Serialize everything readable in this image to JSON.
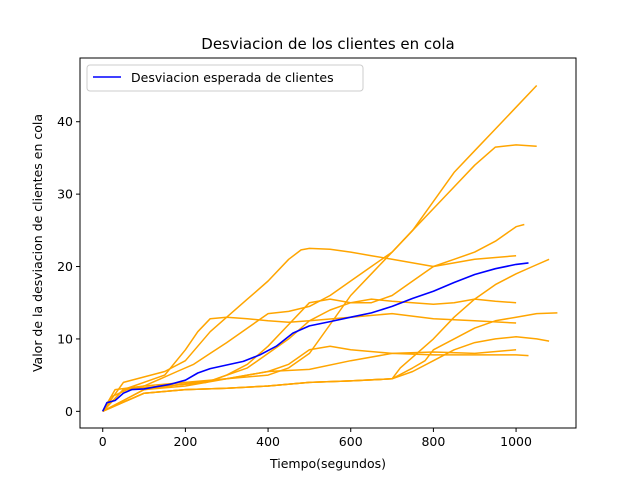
{
  "chart_data": {
    "type": "line",
    "title": "Desviacion de los clientes en cola",
    "xlabel": "Tiempo(segundos)",
    "ylabel": "Valor de la desviacion de clientes en cola",
    "xlim": [
      -55,
      1145
    ],
    "ylim": [
      -2.3,
      48.8
    ],
    "xticks": [
      0,
      200,
      400,
      600,
      800,
      1000
    ],
    "yticks": [
      0,
      10,
      20,
      30,
      40
    ],
    "grid": false,
    "legend": {
      "placement": "top-left",
      "entries": [
        "Desviacion esperada de clientes"
      ]
    },
    "colors": {
      "expected": "#0000ff",
      "runs": "#ffa500"
    },
    "expected_series": {
      "name": "Desviacion esperada de clientes",
      "x": [
        0,
        10,
        30,
        50,
        70,
        100,
        130,
        160,
        200,
        230,
        260,
        300,
        340,
        380,
        420,
        460,
        500,
        550,
        600,
        650,
        700,
        750,
        800,
        850,
        900,
        950,
        1000,
        1030
      ],
      "y": [
        0,
        1.2,
        1.5,
        2.5,
        3.0,
        3.1,
        3.4,
        3.7,
        4.3,
        5.3,
        5.9,
        6.4,
        6.9,
        7.8,
        9.0,
        10.8,
        11.8,
        12.4,
        13.0,
        13.6,
        14.5,
        15.6,
        16.6,
        17.8,
        18.9,
        19.7,
        20.3,
        20.5
      ]
    },
    "series": [
      {
        "x": [
          0,
          20,
          60,
          100,
          140,
          180,
          220,
          260,
          300,
          350,
          400,
          450,
          500,
          550,
          600,
          650,
          700,
          750,
          800,
          850,
          900,
          950,
          1000,
          1050
        ],
        "y": [
          0,
          2,
          3,
          3.5,
          4.5,
          5.5,
          6.5,
          8,
          9.5,
          11.5,
          13.5,
          13.8,
          14.5,
          16,
          18,
          20,
          22,
          25,
          29,
          33,
          36,
          39,
          42,
          45
        ]
      },
      {
        "x": [
          0,
          30,
          100,
          200,
          300,
          400,
          450,
          500,
          550,
          600,
          650,
          700,
          750,
          800,
          850,
          900,
          950,
          1000,
          1050
        ],
        "y": [
          0,
          3,
          3.5,
          4,
          4.5,
          5,
          6,
          8,
          12,
          16,
          19,
          22,
          25,
          28,
          31,
          34,
          36.5,
          36.8,
          36.6
        ]
      },
      {
        "x": [
          0,
          50,
          150,
          200,
          230,
          260,
          300,
          350,
          400,
          450,
          480,
          500,
          550,
          600,
          650,
          700,
          750,
          800,
          850,
          900,
          1000
        ],
        "y": [
          0,
          4,
          5.5,
          7,
          9,
          11,
          13,
          15.5,
          18,
          21,
          22.3,
          22.5,
          22.4,
          22,
          21.5,
          21,
          20.5,
          20,
          20.5,
          21,
          21.5
        ]
      },
      {
        "x": [
          0,
          50,
          150,
          200,
          230,
          260,
          300,
          350,
          400,
          450,
          500,
          600,
          700,
          800,
          900,
          1000
        ],
        "y": [
          0,
          3,
          5,
          8.5,
          11,
          12.8,
          13,
          12.8,
          12.5,
          12.3,
          12.5,
          13,
          13.5,
          12.8,
          12.5,
          12.2
        ]
      },
      {
        "x": [
          0,
          50,
          150,
          250,
          300,
          350,
          400,
          450,
          500,
          550,
          600,
          650,
          700,
          750,
          800,
          850,
          900,
          950,
          1000,
          1020
        ],
        "y": [
          0,
          3,
          3.5,
          4,
          5,
          6.5,
          9,
          12,
          15,
          15.5,
          15,
          15,
          16,
          18,
          20,
          21,
          22,
          23.5,
          25.5,
          25.8
        ]
      },
      {
        "x": [
          0,
          50,
          150,
          250,
          350,
          400,
          450,
          500,
          550,
          600,
          650,
          700,
          750,
          800,
          850,
          900,
          950,
          1000
        ],
        "y": [
          0,
          3,
          3.5,
          4,
          6,
          8,
          10,
          12.5,
          14,
          15,
          15.5,
          15.2,
          15,
          14.8,
          15,
          15.5,
          15.2,
          15
        ]
      },
      {
        "x": [
          0,
          100,
          200,
          300,
          400,
          500,
          600,
          700,
          720,
          760,
          800,
          850,
          900,
          950,
          1000,
          1040,
          1080
        ],
        "y": [
          0,
          2.5,
          3,
          3.2,
          3.5,
          4,
          4.2,
          4.5,
          6,
          8,
          10,
          13,
          15.5,
          17.5,
          19,
          20,
          21
        ]
      },
      {
        "x": [
          0,
          100,
          200,
          300,
          400,
          500,
          600,
          700,
          750,
          780,
          800,
          850,
          900,
          950,
          1000,
          1050,
          1100
        ],
        "y": [
          0,
          2.5,
          3,
          3.2,
          3.5,
          4,
          4.2,
          4.5,
          6,
          7,
          8.5,
          10,
          11.5,
          12.5,
          13,
          13.5,
          13.6
        ]
      },
      {
        "x": [
          0,
          100,
          200,
          300,
          400,
          500,
          600,
          700,
          750,
          800,
          850,
          900,
          950,
          1000,
          1050,
          1080
        ],
        "y": [
          0,
          2.5,
          3,
          3.2,
          3.5,
          4,
          4.2,
          4.5,
          5.5,
          7,
          8.5,
          9.5,
          10,
          10.3,
          10,
          9.7
        ]
      },
      {
        "x": [
          0,
          100,
          200,
          300,
          350,
          400,
          500,
          600,
          700,
          800,
          900,
          1000
        ],
        "y": [
          0,
          3,
          3.8,
          4.5,
          5,
          5.5,
          5.8,
          7,
          8,
          8.2,
          8,
          8.5
        ]
      },
      {
        "x": [
          0,
          100,
          200,
          300,
          400,
          450,
          500,
          550,
          600,
          700,
          800,
          900,
          1000,
          1030
        ],
        "y": [
          0,
          3,
          3.5,
          4.5,
          5.5,
          6.5,
          8.5,
          9,
          8.5,
          8,
          7.8,
          7.8,
          7.8,
          7.7
        ]
      }
    ]
  }
}
